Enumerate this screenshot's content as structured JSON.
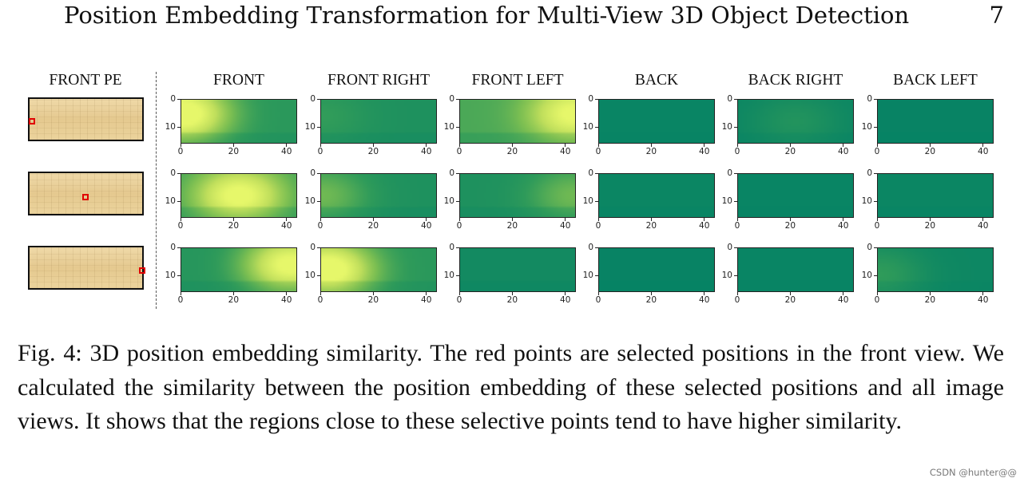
{
  "header": {
    "running_title": "Position Embedding Transformation for Multi-View 3D Object Detection",
    "page_number": "7"
  },
  "figure": {
    "pe_column_title": "FRONT PE",
    "view_titles": [
      "FRONT",
      "FRONT  RIGHT",
      "FRONT  LEFT",
      "BACK",
      "BACK  RIGHT",
      "BACK  LEFT"
    ],
    "x_tick_labels": [
      "0",
      "20",
      "40"
    ],
    "y_tick_labels": [
      "0",
      "10"
    ],
    "colormap": [
      "#007f66",
      "#2f9b5a",
      "#7cbf52",
      "#c0df5c",
      "#e6f76a"
    ],
    "selected_points": [
      {
        "u": 0.02,
        "v": 0.5
      },
      {
        "u": 0.48,
        "v": 0.55
      },
      {
        "u": 0.97,
        "v": 0.52
      }
    ]
  },
  "chart_data": {
    "type": "heatmap",
    "title": "3D position embedding similarity",
    "rows": [
      "selected point 1 (front-left edge)",
      "selected point 2 (front center)",
      "selected point 3 (front-right edge)"
    ],
    "columns": [
      "FRONT",
      "FRONT  RIGHT",
      "FRONT  LEFT",
      "BACK",
      "BACK  RIGHT",
      "BACK  LEFT"
    ],
    "xlim": [
      0,
      44
    ],
    "ylim": [
      16,
      0
    ],
    "xticks": [
      0,
      20,
      40
    ],
    "yticks": [
      0,
      10
    ],
    "value_range": [
      0,
      1
    ],
    "maps": [
      [
        {
          "cx": 0,
          "cy": 5,
          "peak": 0.92,
          "bias": 0.22
        },
        {
          "cx": 0,
          "cy": 6,
          "peak": 0.1,
          "bias": 0.16
        },
        {
          "cx": 44,
          "cy": 5,
          "peak": 0.7,
          "bias": 0.34
        },
        {
          "cx": 22,
          "cy": 8,
          "peak": 0.0,
          "bias": 0.05
        },
        {
          "cx": 22,
          "cy": 8,
          "peak": 0.12,
          "bias": 0.06
        },
        {
          "cx": 22,
          "cy": 8,
          "peak": 0.0,
          "bias": 0.04
        }
      ],
      [
        {
          "cx": 22,
          "cy": 8,
          "peak": 0.78,
          "bias": 0.28
        },
        {
          "cx": 0,
          "cy": 8,
          "peak": 0.3,
          "bias": 0.16
        },
        {
          "cx": 44,
          "cy": 8,
          "peak": 0.3,
          "bias": 0.16
        },
        {
          "cx": 22,
          "cy": 8,
          "peak": 0.0,
          "bias": 0.06
        },
        {
          "cx": 22,
          "cy": 8,
          "peak": 0.0,
          "bias": 0.05
        },
        {
          "cx": 22,
          "cy": 8,
          "peak": 0.0,
          "bias": 0.06
        }
      ],
      [
        {
          "cx": 42,
          "cy": 6,
          "peak": 0.85,
          "bias": 0.2
        },
        {
          "cx": 2,
          "cy": 8,
          "peak": 0.92,
          "bias": 0.22
        },
        {
          "cx": 22,
          "cy": 8,
          "peak": 0.0,
          "bias": 0.1
        },
        {
          "cx": 22,
          "cy": 8,
          "peak": 0.0,
          "bias": 0.04
        },
        {
          "cx": 22,
          "cy": 8,
          "peak": 0.0,
          "bias": 0.05
        },
        {
          "cx": 0,
          "cy": 10,
          "peak": 0.18,
          "bias": 0.07
        }
      ]
    ]
  },
  "caption": "Fig. 4: 3D position embedding similarity. The red points are selected positions in the front view. We calculated the similarity between the position embedding of these selected positions and all image views. It shows that the regions close to these selective points tend to have higher similarity.",
  "watermark": "CSDN @hunter@@"
}
